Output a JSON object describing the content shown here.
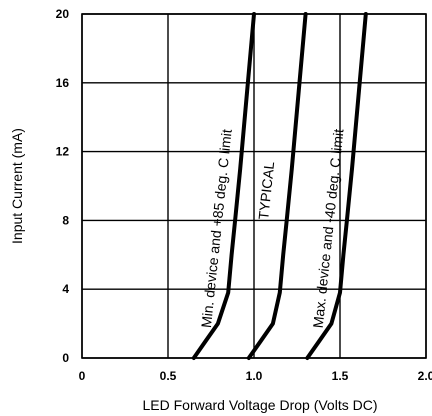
{
  "chart_data": {
    "type": "line",
    "title": "",
    "xlabel": "LED Forward Voltage Drop (Volts DC)",
    "ylabel": "Input Current (mA)",
    "xlim": [
      0,
      2.0
    ],
    "ylim": [
      0,
      20
    ],
    "x_ticks": [
      "0",
      "0.5",
      "1.0",
      "1.5",
      "2.0"
    ],
    "y_ticks": [
      "0",
      "4",
      "8",
      "12",
      "16",
      "20"
    ],
    "grid": true,
    "series": [
      {
        "name": "Min. device and +85 deg. C limit",
        "x": [
          0.65,
          0.72,
          0.79,
          0.85,
          0.87,
          0.89,
          0.92,
          0.96,
          1.0
        ],
        "y": [
          0,
          1,
          2,
          3.8,
          6,
          8,
          11,
          15.5,
          20
        ]
      },
      {
        "name": "TYPICAL",
        "x": [
          0.97,
          1.04,
          1.11,
          1.15,
          1.17,
          1.19,
          1.22,
          1.26,
          1.3
        ],
        "y": [
          0,
          1,
          2,
          3.8,
          6,
          8,
          11,
          15.5,
          20
        ]
      },
      {
        "name": "Max. device and -40 deg. C limit",
        "x": [
          1.31,
          1.38,
          1.45,
          1.5,
          1.52,
          1.54,
          1.57,
          1.61,
          1.65
        ],
        "y": [
          0,
          1,
          2,
          3.8,
          6,
          8,
          11,
          15.5,
          20
        ]
      }
    ],
    "annotations": [
      {
        "text": "Min. device and +85 deg. C limit"
      },
      {
        "text": "TYPICAL"
      },
      {
        "text": "Max. device and -40 deg. C limit"
      }
    ]
  }
}
